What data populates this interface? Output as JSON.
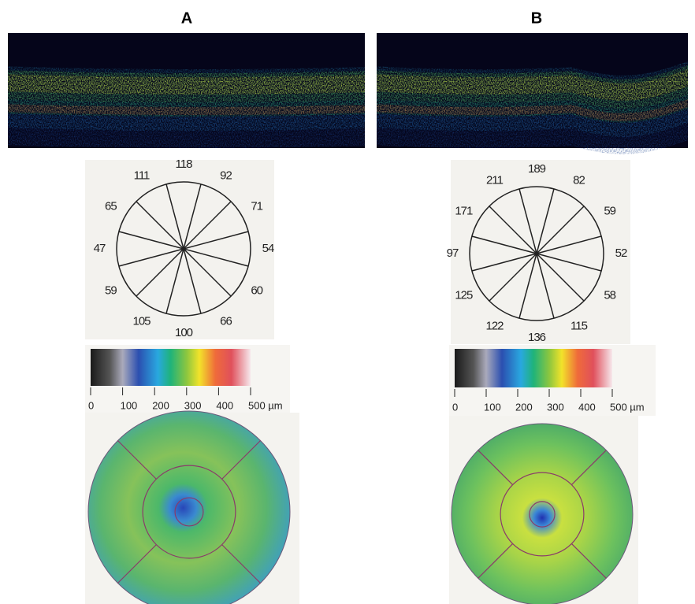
{
  "panels": [
    {
      "label": "A",
      "clock": [
        118,
        92,
        71,
        54,
        60,
        66,
        100,
        105,
        59,
        47,
        65,
        111
      ],
      "scale_ticks": [
        0,
        100,
        200,
        300,
        400,
        {
          "value": 500,
          "label": "500 µm"
        }
      ]
    },
    {
      "label": "B",
      "clock": [
        189,
        82,
        59,
        52,
        58,
        115,
        136,
        122,
        125,
        97,
        171,
        211
      ],
      "scale_ticks": [
        0,
        100,
        200,
        300,
        400,
        {
          "value": 500,
          "label": "500 µm"
        }
      ]
    }
  ]
}
